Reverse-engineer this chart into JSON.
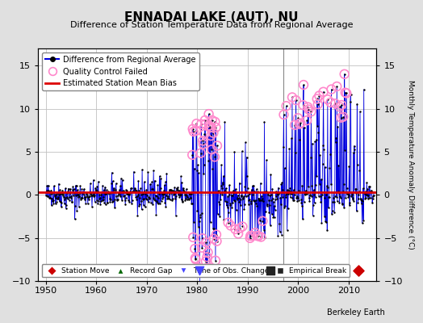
{
  "title": "ENNADAI LAKE (AUT), NU",
  "subtitle": "Difference of Station Temperature Data from Regional Average",
  "ylabel": "Monthly Temperature Anomaly Difference (°C)",
  "xlabel_years": [
    1950,
    1960,
    1970,
    1980,
    1990,
    2000,
    2010
  ],
  "ylim": [
    -10,
    17
  ],
  "yticks": [
    -10,
    -5,
    0,
    5,
    10,
    15
  ],
  "xlim": [
    1948.5,
    2015.5
  ],
  "bias_line_y": 0.3,
  "vertical_line_x": 1997.0,
  "time_of_obs_change_x": 1980.5,
  "station_move_x": 2012.0,
  "empirical_break_x": 1994.5,
  "bg_color": "#e0e0e0",
  "plot_bg_color": "#ffffff",
  "grid_color": "#c0c0c0",
  "line_color": "#0000dd",
  "bias_color": "#dd0000",
  "qc_color": "#ff88cc",
  "marker_color": "#000000",
  "station_move_color": "#cc0000",
  "record_gap_color": "#006600",
  "time_obs_color": "#4444ff",
  "empirical_break_color": "#222222",
  "berkeley_earth_text": "Berkeley Earth",
  "seed": 42
}
